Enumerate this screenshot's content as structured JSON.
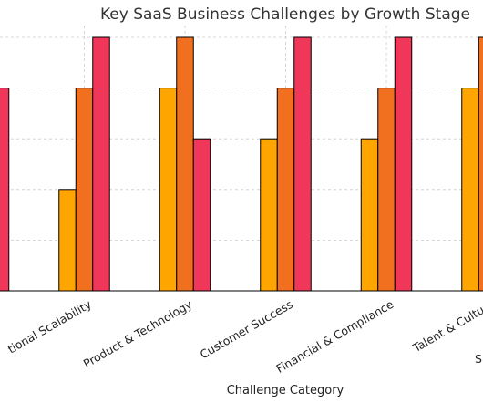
{
  "chart_data": {
    "type": "bar",
    "title": "Key SaaS Business Challenges by Growth Stage",
    "xlabel": "Challenge Category",
    "ylabel": "",
    "categories": [
      "",
      "Operational Scalability",
      "Product & Technology",
      "Customer Success",
      "Financial & Compliance",
      "Talent & Culture"
    ],
    "category_labels": [
      "",
      "tional Scalability",
      "Product & Technology",
      "Customer Success",
      "Financial & Compliance",
      "Talent & Culture"
    ],
    "series": [
      {
        "values": [
          null,
          2,
          4,
          3,
          3,
          4
        ],
        "color": "#FFA500"
      },
      {
        "values": [
          null,
          4,
          5,
          4,
          4,
          5
        ],
        "color": "#F07020"
      },
      {
        "values": [
          4,
          5,
          3,
          5,
          5,
          null
        ],
        "color": "#F0375A"
      }
    ],
    "ylim": [
      0,
      5.4
    ],
    "grid": true,
    "edge_text": "S"
  }
}
